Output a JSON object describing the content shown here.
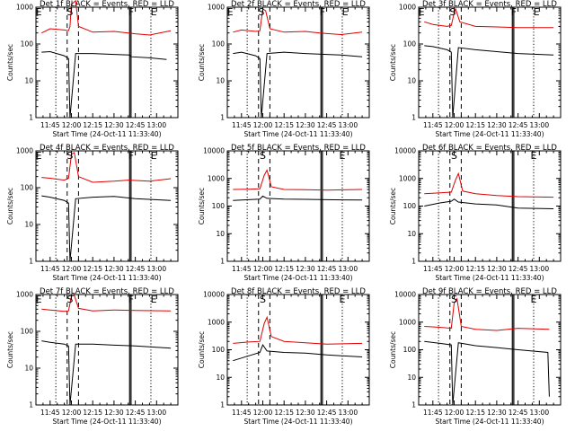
{
  "colors": {
    "events": "#000000",
    "lld": "#e00000"
  },
  "chart_data": [
    {
      "type": "line",
      "title": "Det 1f BLACK = Events, RED = LLD",
      "xlabel": "Start Time (24-Oct-11 11:33:40)",
      "ylabel": "Counts/sec",
      "yscale": "log",
      "ylim": [
        1,
        1000
      ],
      "yticks": [
        "1",
        "10",
        "100",
        "1000"
      ],
      "xlim": [
        "11:35",
        "13:15"
      ],
      "xticks": [
        "11:45",
        "12:00",
        "12:15",
        "12:30",
        "12:45",
        "13:00"
      ],
      "grid": false,
      "region_letters": [
        "E",
        "S",
        "F",
        "E"
      ],
      "series": [
        {
          "color": "#e00000",
          "x": [
            "11:39",
            "11:45",
            "11:55",
            "11:58",
            "11:59",
            "12:00",
            "12:03",
            "12:05",
            "12:15",
            "12:30",
            "12:40",
            "12:45",
            "12:55",
            "13:10"
          ],
          "y": [
            200,
            260,
            240,
            230,
            300,
            1200,
            1500,
            300,
            210,
            220,
            200,
            190,
            175,
            230
          ]
        },
        {
          "color": "#000000",
          "x": [
            "11:39",
            "11:45",
            "11:55",
            "11:58",
            "11:59",
            "12:03",
            "12:15",
            "12:30",
            "12:41",
            "12:42",
            "12:55",
            "13:07"
          ],
          "y": [
            60,
            62,
            48,
            40,
            1,
            55,
            55,
            52,
            50,
            45,
            42,
            38
          ]
        }
      ]
    },
    {
      "type": "line",
      "title": "Det 2f BLACK = Events, RED = LLD",
      "xlabel": "Start Time (24-Oct-11 11:33:40)",
      "ylabel": "Counts/sec",
      "yscale": "log",
      "ylim": [
        1,
        1000
      ],
      "yticks": [
        "1",
        "10",
        "100",
        "1000"
      ],
      "xlim": [
        "11:35",
        "13:15"
      ],
      "xticks": [
        "11:45",
        "12:00",
        "12:15",
        "12:30",
        "12:45",
        "13:00"
      ],
      "grid": false,
      "region_letters": [
        "E",
        "S",
        "F",
        "E"
      ],
      "series": [
        {
          "color": "#e00000",
          "x": [
            "11:39",
            "11:45",
            "11:55",
            "11:58",
            "12:00",
            "12:02",
            "12:05",
            "12:15",
            "12:30",
            "12:40",
            "12:55",
            "13:10"
          ],
          "y": [
            210,
            240,
            220,
            230,
            900,
            800,
            260,
            210,
            220,
            200,
            180,
            210
          ]
        },
        {
          "color": "#000000",
          "x": [
            "11:39",
            "11:45",
            "11:55",
            "11:58",
            "11:59",
            "12:03",
            "12:15",
            "12:30",
            "12:45",
            "12:55",
            "13:10"
          ],
          "y": [
            55,
            60,
            48,
            40,
            1,
            55,
            60,
            55,
            52,
            50,
            45
          ]
        }
      ]
    },
    {
      "type": "line",
      "title": "Det 3f BLACK = Events, RED = LLD",
      "xlabel": "Start Time (24-Oct-11 11:33:40)",
      "ylabel": "Counts/sec",
      "yscale": "log",
      "ylim": [
        1,
        1000
      ],
      "yticks": [
        "1",
        "10",
        "100",
        "1000"
      ],
      "xlim": [
        "11:35",
        "13:15"
      ],
      "xticks": [
        "11:45",
        "12:00",
        "12:15",
        "12:30",
        "12:45",
        "13:00"
      ],
      "grid": false,
      "region_letters": [
        "E",
        "S",
        "F",
        "E"
      ],
      "series": [
        {
          "color": "#e00000",
          "x": [
            "11:39",
            "11:45",
            "11:55",
            "11:58",
            "12:00",
            "12:01",
            "12:04",
            "12:15",
            "12:30",
            "12:45",
            "13:10"
          ],
          "y": [
            400,
            340,
            300,
            320,
            700,
            900,
            400,
            300,
            290,
            280,
            280
          ]
        },
        {
          "color": "#000000",
          "x": [
            "11:39",
            "11:45",
            "11:55",
            "11:58",
            "11:59",
            "12:03",
            "12:15",
            "12:30",
            "12:45",
            "13:10"
          ],
          "y": [
            90,
            85,
            70,
            60,
            1,
            80,
            70,
            62,
            55,
            50
          ]
        }
      ]
    },
    {
      "type": "line",
      "title": "Det 4f BLACK = Events, RED = LLD",
      "xlabel": "Start Time (24-Oct-11 11:33:40)",
      "ylabel": "Counts/sec",
      "yscale": "log",
      "ylim": [
        1,
        1000
      ],
      "yticks": [
        "1",
        "10",
        "100",
        "1000"
      ],
      "xlim": [
        "11:35",
        "13:15"
      ],
      "xticks": [
        "11:45",
        "12:00",
        "12:15",
        "12:30",
        "12:45",
        "13:00"
      ],
      "grid": false,
      "region_letters": [
        "E",
        "S",
        "F",
        "E"
      ],
      "series": [
        {
          "color": "#e00000",
          "x": [
            "11:39",
            "11:45",
            "11:55",
            "11:58",
            "12:00",
            "12:02",
            "12:05",
            "12:15",
            "12:30",
            "12:40",
            "12:55",
            "13:10"
          ],
          "y": [
            190,
            180,
            160,
            180,
            800,
            900,
            200,
            140,
            150,
            160,
            150,
            175
          ]
        },
        {
          "color": "#000000",
          "x": [
            "11:39",
            "11:45",
            "11:55",
            "11:58",
            "11:59",
            "12:03",
            "12:15",
            "12:30",
            "12:45",
            "13:10"
          ],
          "y": [
            60,
            55,
            45,
            38,
            1,
            50,
            55,
            58,
            50,
            45
          ]
        }
      ]
    },
    {
      "type": "line",
      "title": "Det 5f BLACK = Events, RED = LLD",
      "xlabel": "Start Time (24-Oct-11 11:33:40)",
      "ylabel": "Counts/sec",
      "yscale": "log",
      "ylim": [
        1,
        10000
      ],
      "yticks": [
        "1",
        "10",
        "100",
        "1000",
        "10000"
      ],
      "xlim": [
        "11:35",
        "13:15"
      ],
      "xticks": [
        "11:45",
        "12:00",
        "12:15",
        "12:30",
        "12:45",
        "13:00"
      ],
      "grid": false,
      "region_letters": [
        "S",
        "E"
      ],
      "series": [
        {
          "color": "#e00000",
          "x": [
            "11:39",
            "11:50",
            "11:58",
            "12:01",
            "12:03",
            "12:06",
            "12:15",
            "12:30",
            "12:45",
            "13:10"
          ],
          "y": [
            400,
            410,
            420,
            1300,
            2000,
            500,
            400,
            390,
            380,
            400
          ]
        },
        {
          "color": "#000000",
          "x": [
            "11:39",
            "11:50",
            "11:58",
            "12:00",
            "12:03",
            "12:15",
            "12:30",
            "12:45",
            "13:10"
          ],
          "y": [
            160,
            170,
            180,
            230,
            190,
            180,
            175,
            170,
            165
          ]
        }
      ]
    },
    {
      "type": "line",
      "title": "Det 6f BLACK = Events, RED = LLD",
      "xlabel": "Start Time (24-Oct-11 11:33:40)",
      "ylabel": "Counts/sec",
      "yscale": "log",
      "ylim": [
        1,
        10000
      ],
      "yticks": [
        "1",
        "10",
        "100",
        "1000",
        "10000"
      ],
      "xlim": [
        "11:35",
        "13:15"
      ],
      "xticks": [
        "11:45",
        "12:00",
        "12:15",
        "12:30",
        "12:45",
        "13:00"
      ],
      "grid": false,
      "region_letters": [
        "S",
        "E"
      ],
      "series": [
        {
          "color": "#e00000",
          "x": [
            "11:39",
            "11:50",
            "11:58",
            "12:01",
            "12:03",
            "12:06",
            "12:15",
            "12:30",
            "12:45",
            "13:10"
          ],
          "y": [
            280,
            300,
            320,
            900,
            1500,
            350,
            280,
            240,
            220,
            210
          ]
        },
        {
          "color": "#000000",
          "x": [
            "11:39",
            "11:50",
            "11:58",
            "12:00",
            "12:03",
            "12:15",
            "12:30",
            "12:45",
            "13:10"
          ],
          "y": [
            100,
            130,
            150,
            180,
            140,
            120,
            110,
            85,
            80
          ]
        }
      ]
    },
    {
      "type": "line",
      "title": "Det 7f BLACK = Events, RED = LLD",
      "xlabel": "Start Time (24-Oct-11 11:33:40)",
      "ylabel": "Counts/sec",
      "yscale": "log",
      "ylim": [
        1,
        1000
      ],
      "yticks": [
        "1",
        "10",
        "100",
        "1000"
      ],
      "xlim": [
        "11:35",
        "13:15"
      ],
      "xticks": [
        "11:45",
        "12:00",
        "12:15",
        "12:30",
        "12:45",
        "13:00"
      ],
      "grid": false,
      "region_letters": [
        "E",
        "S",
        "F",
        "E"
      ],
      "series": [
        {
          "color": "#e00000",
          "x": [
            "11:39",
            "11:45",
            "11:55",
            "11:58",
            "12:00",
            "12:02",
            "12:05",
            "12:15",
            "12:30",
            "12:45",
            "13:10"
          ],
          "y": [
            400,
            380,
            350,
            360,
            900,
            950,
            420,
            360,
            380,
            370,
            360
          ]
        },
        {
          "color": "#000000",
          "x": [
            "11:39",
            "11:45",
            "11:55",
            "11:58",
            "11:59",
            "12:03",
            "12:15",
            "12:30",
            "12:45",
            "13:10"
          ],
          "y": [
            55,
            50,
            45,
            40,
            1,
            45,
            45,
            42,
            40,
            35
          ]
        }
      ]
    },
    {
      "type": "line",
      "title": "Det 8f BLACK = Events, RED = LLD",
      "xlabel": "Start Time (24-Oct-11 11:33:40)",
      "ylabel": "Counts/sec",
      "yscale": "log",
      "ylim": [
        1,
        10000
      ],
      "yticks": [
        "1",
        "10",
        "100",
        "1000",
        "10000"
      ],
      "xlim": [
        "11:35",
        "13:15"
      ],
      "xticks": [
        "11:45",
        "12:00",
        "12:15",
        "12:30",
        "12:45",
        "13:00"
      ],
      "grid": false,
      "region_letters": [
        "S",
        "E"
      ],
      "series": [
        {
          "color": "#e00000",
          "x": [
            "11:39",
            "11:50",
            "11:58",
            "12:01",
            "12:03",
            "12:06",
            "12:15",
            "12:30",
            "12:45",
            "13:10"
          ],
          "y": [
            170,
            190,
            200,
            900,
            1500,
            300,
            200,
            180,
            160,
            170
          ]
        },
        {
          "color": "#000000",
          "x": [
            "11:39",
            "11:50",
            "11:58",
            "12:00",
            "12:03",
            "12:15",
            "12:30",
            "12:45",
            "13:10"
          ],
          "y": [
            40,
            60,
            80,
            150,
            90,
            80,
            75,
            65,
            55
          ]
        }
      ]
    },
    {
      "type": "line",
      "title": "Det 9f BLACK = Events, RED = LLD",
      "xlabel": "Start Time (24-Oct-11 11:33:40)",
      "ylabel": "Counts/sec",
      "yscale": "log",
      "ylim": [
        1,
        10000
      ],
      "yticks": [
        "1",
        "10",
        "100",
        "1000",
        "10000"
      ],
      "xlim": [
        "11:35",
        "13:15"
      ],
      "xticks": [
        "11:45",
        "12:00",
        "12:15",
        "12:30",
        "12:45",
        "13:00"
      ],
      "grid": false,
      "region_letters": [
        "S",
        "E"
      ],
      "series": [
        {
          "color": "#e00000",
          "x": [
            "11:39",
            "11:50",
            "11:58",
            "12:00",
            "12:02",
            "12:05",
            "12:15",
            "12:30",
            "12:45",
            "13:07"
          ],
          "y": [
            700,
            650,
            600,
            5000,
            7000,
            700,
            550,
            500,
            600,
            550
          ]
        },
        {
          "color": "#000000",
          "x": [
            "11:39",
            "11:50",
            "11:58",
            "11:59",
            "12:03",
            "12:15",
            "12:30",
            "12:45",
            "13:06",
            "13:07"
          ],
          "y": [
            200,
            170,
            150,
            1,
            180,
            140,
            120,
            100,
            80,
            2
          ]
        }
      ]
    }
  ]
}
